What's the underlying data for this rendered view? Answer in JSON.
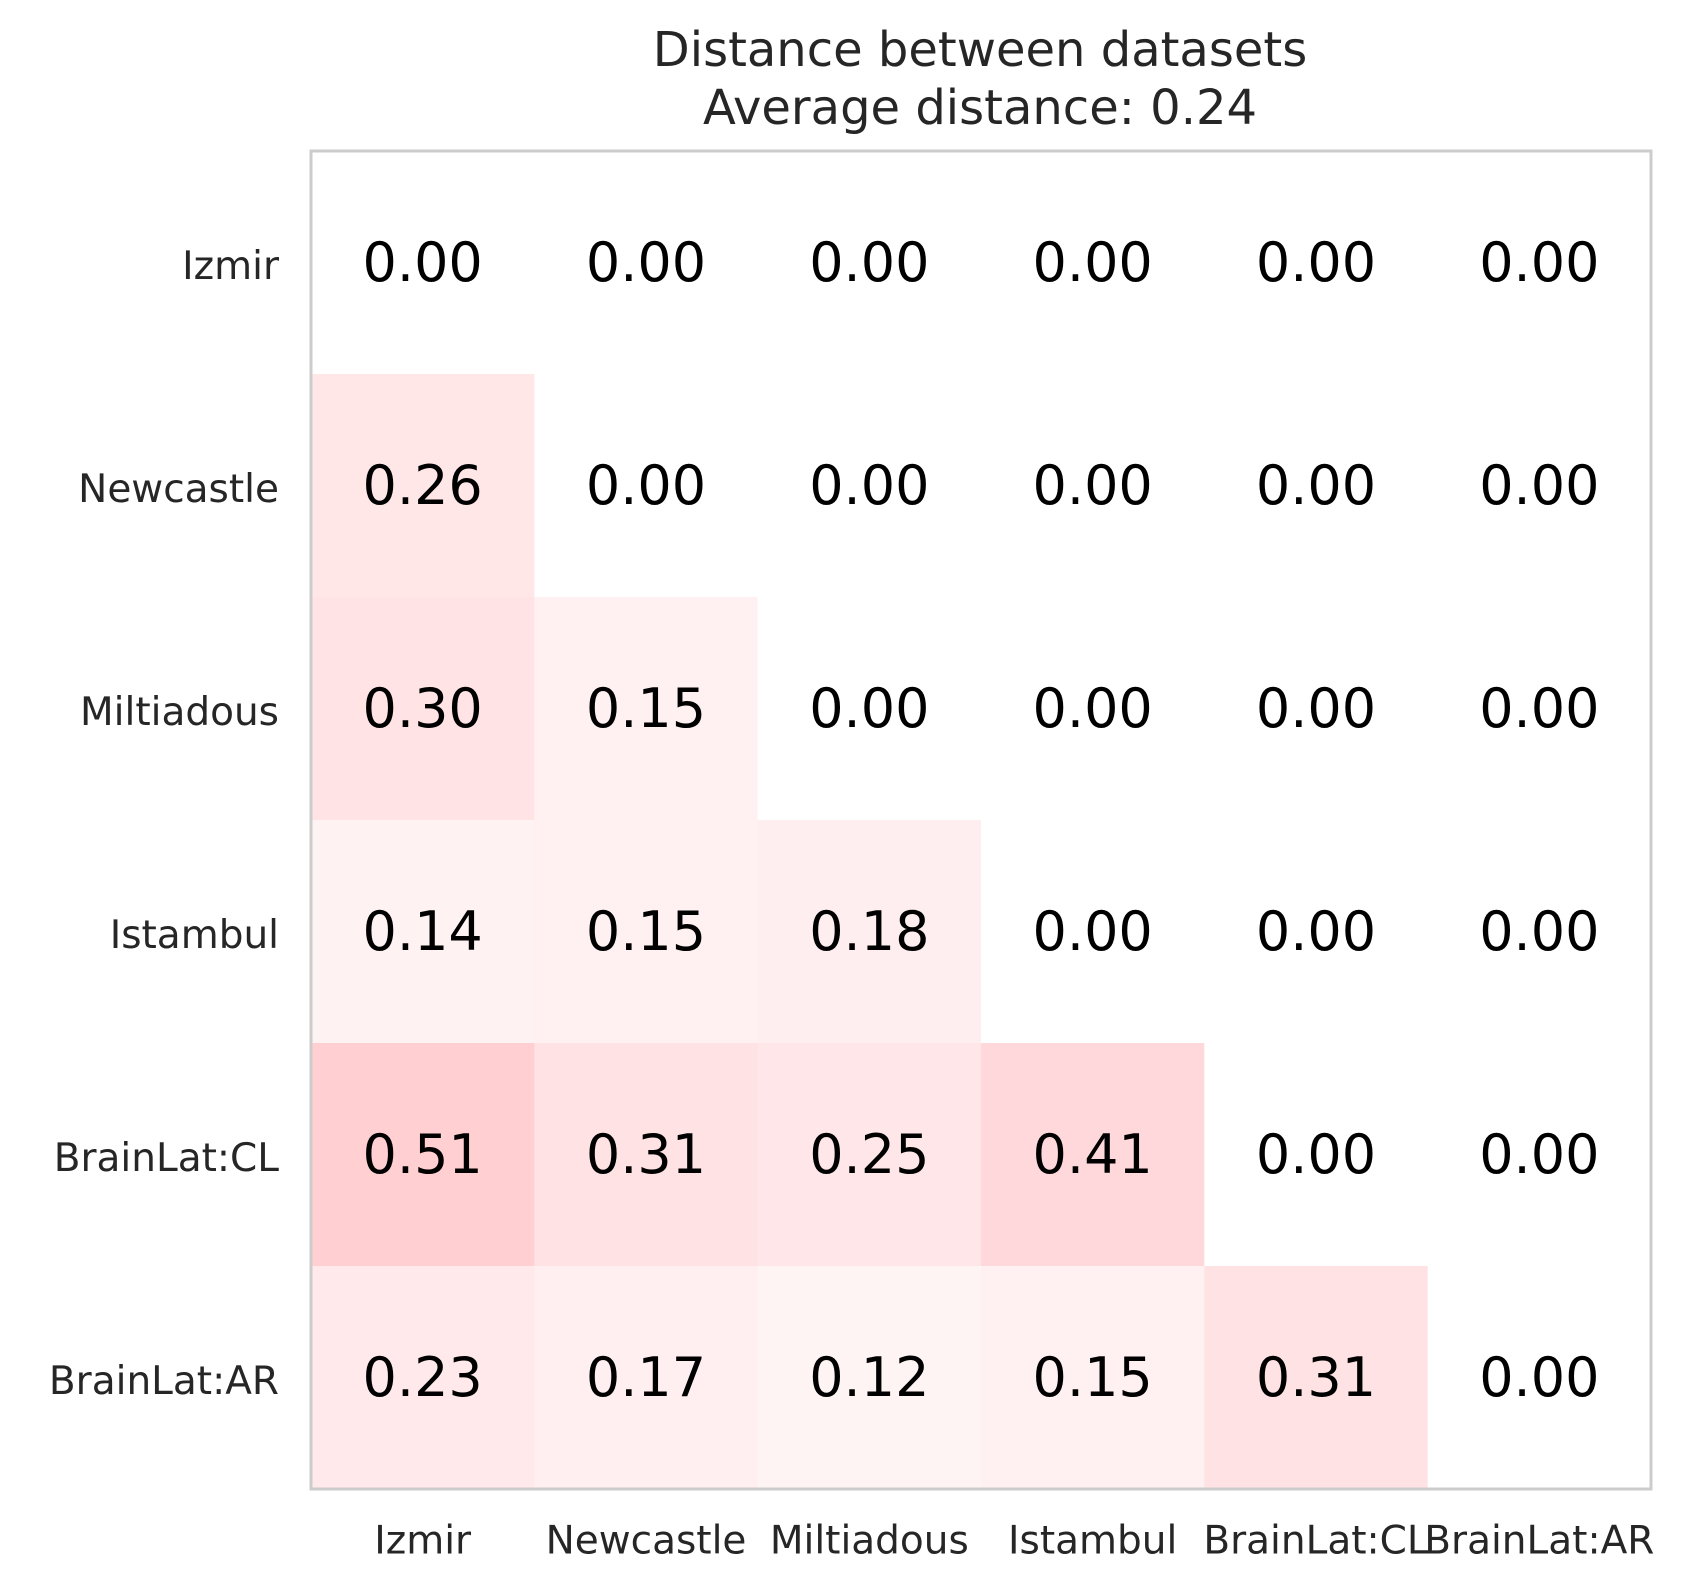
{
  "chart_data": {
    "type": "heatmap",
    "title": "Distance between datasets",
    "subtitle": "Average distance: 0.24",
    "xlabel": "",
    "ylabel": "",
    "x_categories": [
      "Izmir",
      "Newcastle",
      "Miltiadous",
      "Istambul",
      "BrainLat:CL",
      "BrainLat:AR"
    ],
    "y_categories": [
      "Izmir",
      "Newcastle",
      "Miltiadous",
      "Istambul",
      "BrainLat:CL",
      "BrainLat:AR"
    ],
    "values": [
      [
        0.0,
        0.0,
        0.0,
        0.0,
        0.0,
        0.0
      ],
      [
        0.26,
        0.0,
        0.0,
        0.0,
        0.0,
        0.0
      ],
      [
        0.3,
        0.15,
        0.0,
        0.0,
        0.0,
        0.0
      ],
      [
        0.14,
        0.15,
        0.18,
        0.0,
        0.0,
        0.0
      ],
      [
        0.51,
        0.31,
        0.25,
        0.41,
        0.0,
        0.0
      ],
      [
        0.23,
        0.17,
        0.12,
        0.15,
        0.31,
        0.0
      ]
    ],
    "value_labels": [
      [
        "0.00",
        "0.00",
        "0.00",
        "0.00",
        "0.00",
        "0.00"
      ],
      [
        "0.26",
        "0.00",
        "0.00",
        "0.00",
        "0.00",
        "0.00"
      ],
      [
        "0.30",
        "0.15",
        "0.00",
        "0.00",
        "0.00",
        "0.00"
      ],
      [
        "0.14",
        "0.15",
        "0.18",
        "0.00",
        "0.00",
        "0.00"
      ],
      [
        "0.51",
        "0.31",
        "0.25",
        "0.41",
        "0.00",
        "0.00"
      ],
      [
        "0.23",
        "0.17",
        "0.12",
        "0.15",
        "0.31",
        "0.00"
      ]
    ],
    "color_range": [
      0,
      0.51
    ],
    "colors": {
      "low": "#ffffff",
      "high": "#ffcfd2",
      "frame": "#cccccc",
      "text": "#000000",
      "label_text": "#262626"
    },
    "grid": false,
    "legend": "none"
  }
}
